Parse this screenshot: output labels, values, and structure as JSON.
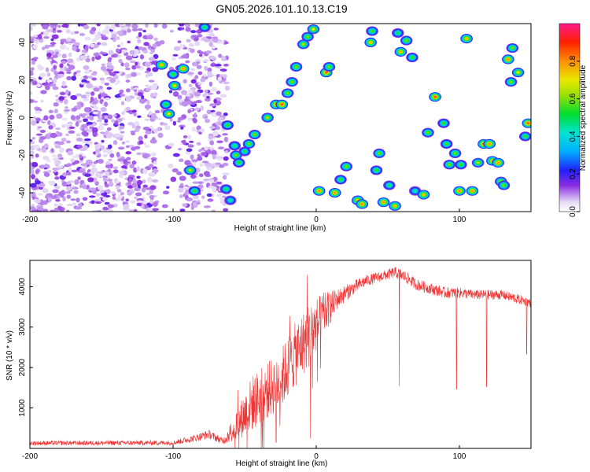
{
  "title": "GN05.2026.101.10.13.C19",
  "chart_data": [
    {
      "type": "heatmap",
      "name": "spectrogram",
      "xlabel": "Height of straight line (km)",
      "ylabel": "Frequency (Hz)",
      "xlim": [
        -200,
        150
      ],
      "ylim": [
        -50,
        50
      ],
      "xticks": [
        -200,
        -100,
        0,
        100
      ],
      "yticks": [
        -40,
        -20,
        0,
        20,
        40
      ],
      "colorbar": {
        "label": "Normalized spectral amplitude",
        "range": [
          0,
          1
        ],
        "ticks": [
          0.0,
          0.2,
          0.4,
          0.6,
          0.8
        ]
      },
      "background_noise": {
        "x_range": [
          -200,
          -62
        ],
        "y_range": [
          -50,
          50
        ],
        "description_amplitude": 0.2
      },
      "peaks": [
        {
          "x": -108,
          "y": 28,
          "a": 0.75
        },
        {
          "x": -100,
          "y": 23,
          "a": 0.55
        },
        {
          "x": -99,
          "y": 17,
          "a": 0.7
        },
        {
          "x": -93,
          "y": 26,
          "a": 0.8
        },
        {
          "x": -105,
          "y": 7,
          "a": 0.55
        },
        {
          "x": -103,
          "y": 2,
          "a": 0.7
        },
        {
          "x": -88,
          "y": -28,
          "a": 0.65
        },
        {
          "x": -85,
          "y": -39,
          "a": 0.55
        },
        {
          "x": -78,
          "y": 48,
          "a": 0.5
        },
        {
          "x": -62,
          "y": -4,
          "a": 0.55
        },
        {
          "x": -63,
          "y": -38,
          "a": 0.5
        },
        {
          "x": -60,
          "y": -44,
          "a": 0.45
        },
        {
          "x": -57,
          "y": -15,
          "a": 0.5
        },
        {
          "x": -56,
          "y": -20,
          "a": 0.6
        },
        {
          "x": -54,
          "y": -24,
          "a": 0.55
        },
        {
          "x": -50,
          "y": -18,
          "a": 0.5
        },
        {
          "x": -47,
          "y": -14,
          "a": 0.6
        },
        {
          "x": -43,
          "y": -9,
          "a": 0.6
        },
        {
          "x": -34,
          "y": 0,
          "a": 0.65
        },
        {
          "x": -28,
          "y": 7,
          "a": 0.8
        },
        {
          "x": -24,
          "y": 7,
          "a": 0.85
        },
        {
          "x": -20,
          "y": 13,
          "a": 0.6
        },
        {
          "x": -17,
          "y": 19,
          "a": 0.6
        },
        {
          "x": -14,
          "y": 27,
          "a": 0.6
        },
        {
          "x": -9,
          "y": 39,
          "a": 0.65
        },
        {
          "x": -6,
          "y": 43,
          "a": 0.6
        },
        {
          "x": -2,
          "y": 47,
          "a": 0.7
        },
        {
          "x": 7,
          "y": 24,
          "a": 0.85
        },
        {
          "x": 9,
          "y": 27,
          "a": 0.6
        },
        {
          "x": 2,
          "y": -39,
          "a": 0.8
        },
        {
          "x": 13,
          "y": -40,
          "a": 0.8
        },
        {
          "x": 17,
          "y": -33,
          "a": 0.55
        },
        {
          "x": 21,
          "y": -26,
          "a": 0.6
        },
        {
          "x": 29,
          "y": -44,
          "a": 0.75
        },
        {
          "x": 32,
          "y": -46,
          "a": 0.8
        },
        {
          "x": 38,
          "y": 40,
          "a": 0.75
        },
        {
          "x": 39,
          "y": 46,
          "a": 0.55
        },
        {
          "x": 42,
          "y": -28,
          "a": 0.55
        },
        {
          "x": 44,
          "y": -19,
          "a": 0.6
        },
        {
          "x": 47,
          "y": -45,
          "a": 0.8
        },
        {
          "x": 51,
          "y": -36,
          "a": 0.5
        },
        {
          "x": 55,
          "y": -47,
          "a": 0.75
        },
        {
          "x": 57,
          "y": 45,
          "a": 0.5
        },
        {
          "x": 59,
          "y": 35,
          "a": 0.75
        },
        {
          "x": 63,
          "y": 41,
          "a": 0.6
        },
        {
          "x": 67,
          "y": 32,
          "a": 0.55
        },
        {
          "x": 69,
          "y": -39,
          "a": 0.45
        },
        {
          "x": 75,
          "y": -41,
          "a": 0.75
        },
        {
          "x": 78,
          "y": -8,
          "a": 0.6
        },
        {
          "x": 83,
          "y": 11,
          "a": 0.85
        },
        {
          "x": 89,
          "y": -3,
          "a": 0.55
        },
        {
          "x": 91,
          "y": -14,
          "a": 0.55
        },
        {
          "x": 93,
          "y": -25,
          "a": 0.6
        },
        {
          "x": 97,
          "y": -19,
          "a": 0.6
        },
        {
          "x": 101,
          "y": -25,
          "a": 0.55
        },
        {
          "x": 100,
          "y": -39,
          "a": 0.8
        },
        {
          "x": 105,
          "y": 42,
          "a": 0.75
        },
        {
          "x": 109,
          "y": -39,
          "a": 0.8
        },
        {
          "x": 113,
          "y": -24,
          "a": 0.65
        },
        {
          "x": 117,
          "y": -14,
          "a": 0.85
        },
        {
          "x": 121,
          "y": -14,
          "a": 0.8
        },
        {
          "x": 123,
          "y": -23,
          "a": 0.75
        },
        {
          "x": 127,
          "y": -24,
          "a": 0.8
        },
        {
          "x": 129,
          "y": -34,
          "a": 0.65
        },
        {
          "x": 131,
          "y": -36,
          "a": 0.6
        },
        {
          "x": 134,
          "y": 31,
          "a": 0.8
        },
        {
          "x": 137,
          "y": 37,
          "a": 0.6
        },
        {
          "x": 136,
          "y": 19,
          "a": 0.6
        },
        {
          "x": 141,
          "y": 24,
          "a": 0.7
        },
        {
          "x": 148,
          "y": -3,
          "a": 0.85
        },
        {
          "x": 146,
          "y": -10,
          "a": 0.55
        }
      ]
    },
    {
      "type": "line",
      "name": "snr",
      "xlabel": "Height of straight line (km)",
      "ylabel": "SNR (10 * v/v)",
      "xlim": [
        -200,
        150
      ],
      "ylim": [
        0,
        4650
      ],
      "xticks": [
        -200,
        -100,
        0,
        100
      ],
      "yticks": [
        1000,
        2000,
        3000,
        4000
      ],
      "color": "#ee3333",
      "envelope": {
        "x": [
          -200,
          -100,
          -85,
          -75,
          -65,
          -55,
          -45,
          -35,
          -25,
          -15,
          -5,
          5,
          15,
          25,
          35,
          45,
          55,
          62,
          70,
          80,
          90,
          100,
          110,
          120,
          130,
          140,
          150
        ],
        "mean": [
          130,
          140,
          250,
          350,
          180,
          600,
          1100,
          1400,
          1700,
          2300,
          2800,
          3300,
          3700,
          3950,
          4150,
          4250,
          4350,
          4250,
          4050,
          3950,
          3850,
          3850,
          3800,
          3800,
          3800,
          3700,
          3600
        ],
        "noise": [
          55,
          60,
          90,
          110,
          80,
          400,
          700,
          700,
          750,
          800,
          800,
          550,
          250,
          180,
          140,
          130,
          140,
          150,
          140,
          140,
          140,
          130,
          120,
          120,
          120,
          120,
          110
        ]
      },
      "dips": [
        {
          "x": 58,
          "y": 1550
        },
        {
          "x": 98,
          "y": 1470
        },
        {
          "x": 119,
          "y": 1530
        },
        {
          "x": 147,
          "y": 2330
        },
        {
          "x": -4,
          "y": 250
        },
        {
          "x": -28,
          "y": 150
        }
      ]
    }
  ]
}
